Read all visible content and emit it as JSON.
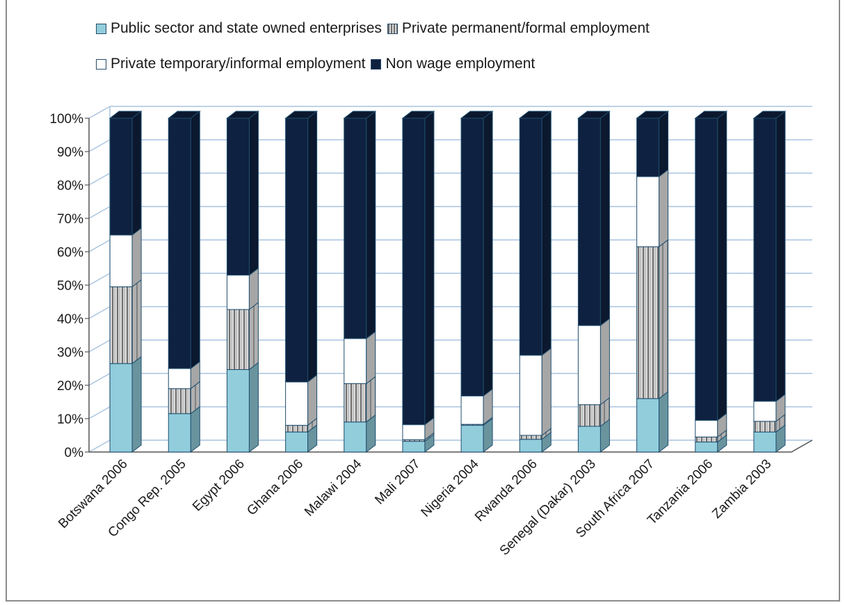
{
  "chart_data": {
    "type": "bar",
    "stacked": true,
    "percent": true,
    "categories": [
      "Botswana 2006",
      "Congo Rep. 2005",
      "Egypt 2006",
      "Ghana 2006",
      "Malawi 2004",
      "Mali 2007",
      "Nigeria 2004",
      "Rwanda 2006",
      "Senegal (Dakar) 2003",
      "South Africa 2007",
      "Tanzania 2006",
      "Zambia 2003"
    ],
    "series": [
      {
        "name": "Public sector and state owned enterprises",
        "color": "#92cddc",
        "pattern": "solid",
        "values": [
          26.5,
          11.5,
          24.7,
          6.0,
          9.0,
          3.2,
          8.0,
          3.8,
          7.7,
          16.0,
          3.0,
          6.0
        ]
      },
      {
        "name": "Private permanent/formal employment",
        "color": "#bfbfbf",
        "pattern": "vertical-stripes",
        "values": [
          23.0,
          7.5,
          18.0,
          2.0,
          11.5,
          0.5,
          0.3,
          1.2,
          6.5,
          45.5,
          1.5,
          3.2
        ]
      },
      {
        "name": "Private temporary/informal employment",
        "color": "#ffffff",
        "pattern": "solid",
        "values": [
          15.5,
          6.0,
          10.3,
          13.0,
          13.5,
          4.5,
          8.5,
          24.0,
          23.7,
          21.0,
          5.0,
          6.0
        ]
      },
      {
        "name": "Non wage employment",
        "color": "#0f2140",
        "pattern": "solid",
        "values": [
          35.0,
          75.0,
          47.0,
          79.0,
          66.0,
          91.8,
          83.2,
          71.0,
          62.1,
          17.5,
          90.5,
          84.8
        ]
      }
    ],
    "ylim": [
      0,
      100
    ],
    "yticks": [
      "0%",
      "10%",
      "20%",
      "30%",
      "40%",
      "50%",
      "60%",
      "70%",
      "80%",
      "90%",
      "100%"
    ],
    "grid": true,
    "legend_position": "top",
    "three_d": true
  }
}
